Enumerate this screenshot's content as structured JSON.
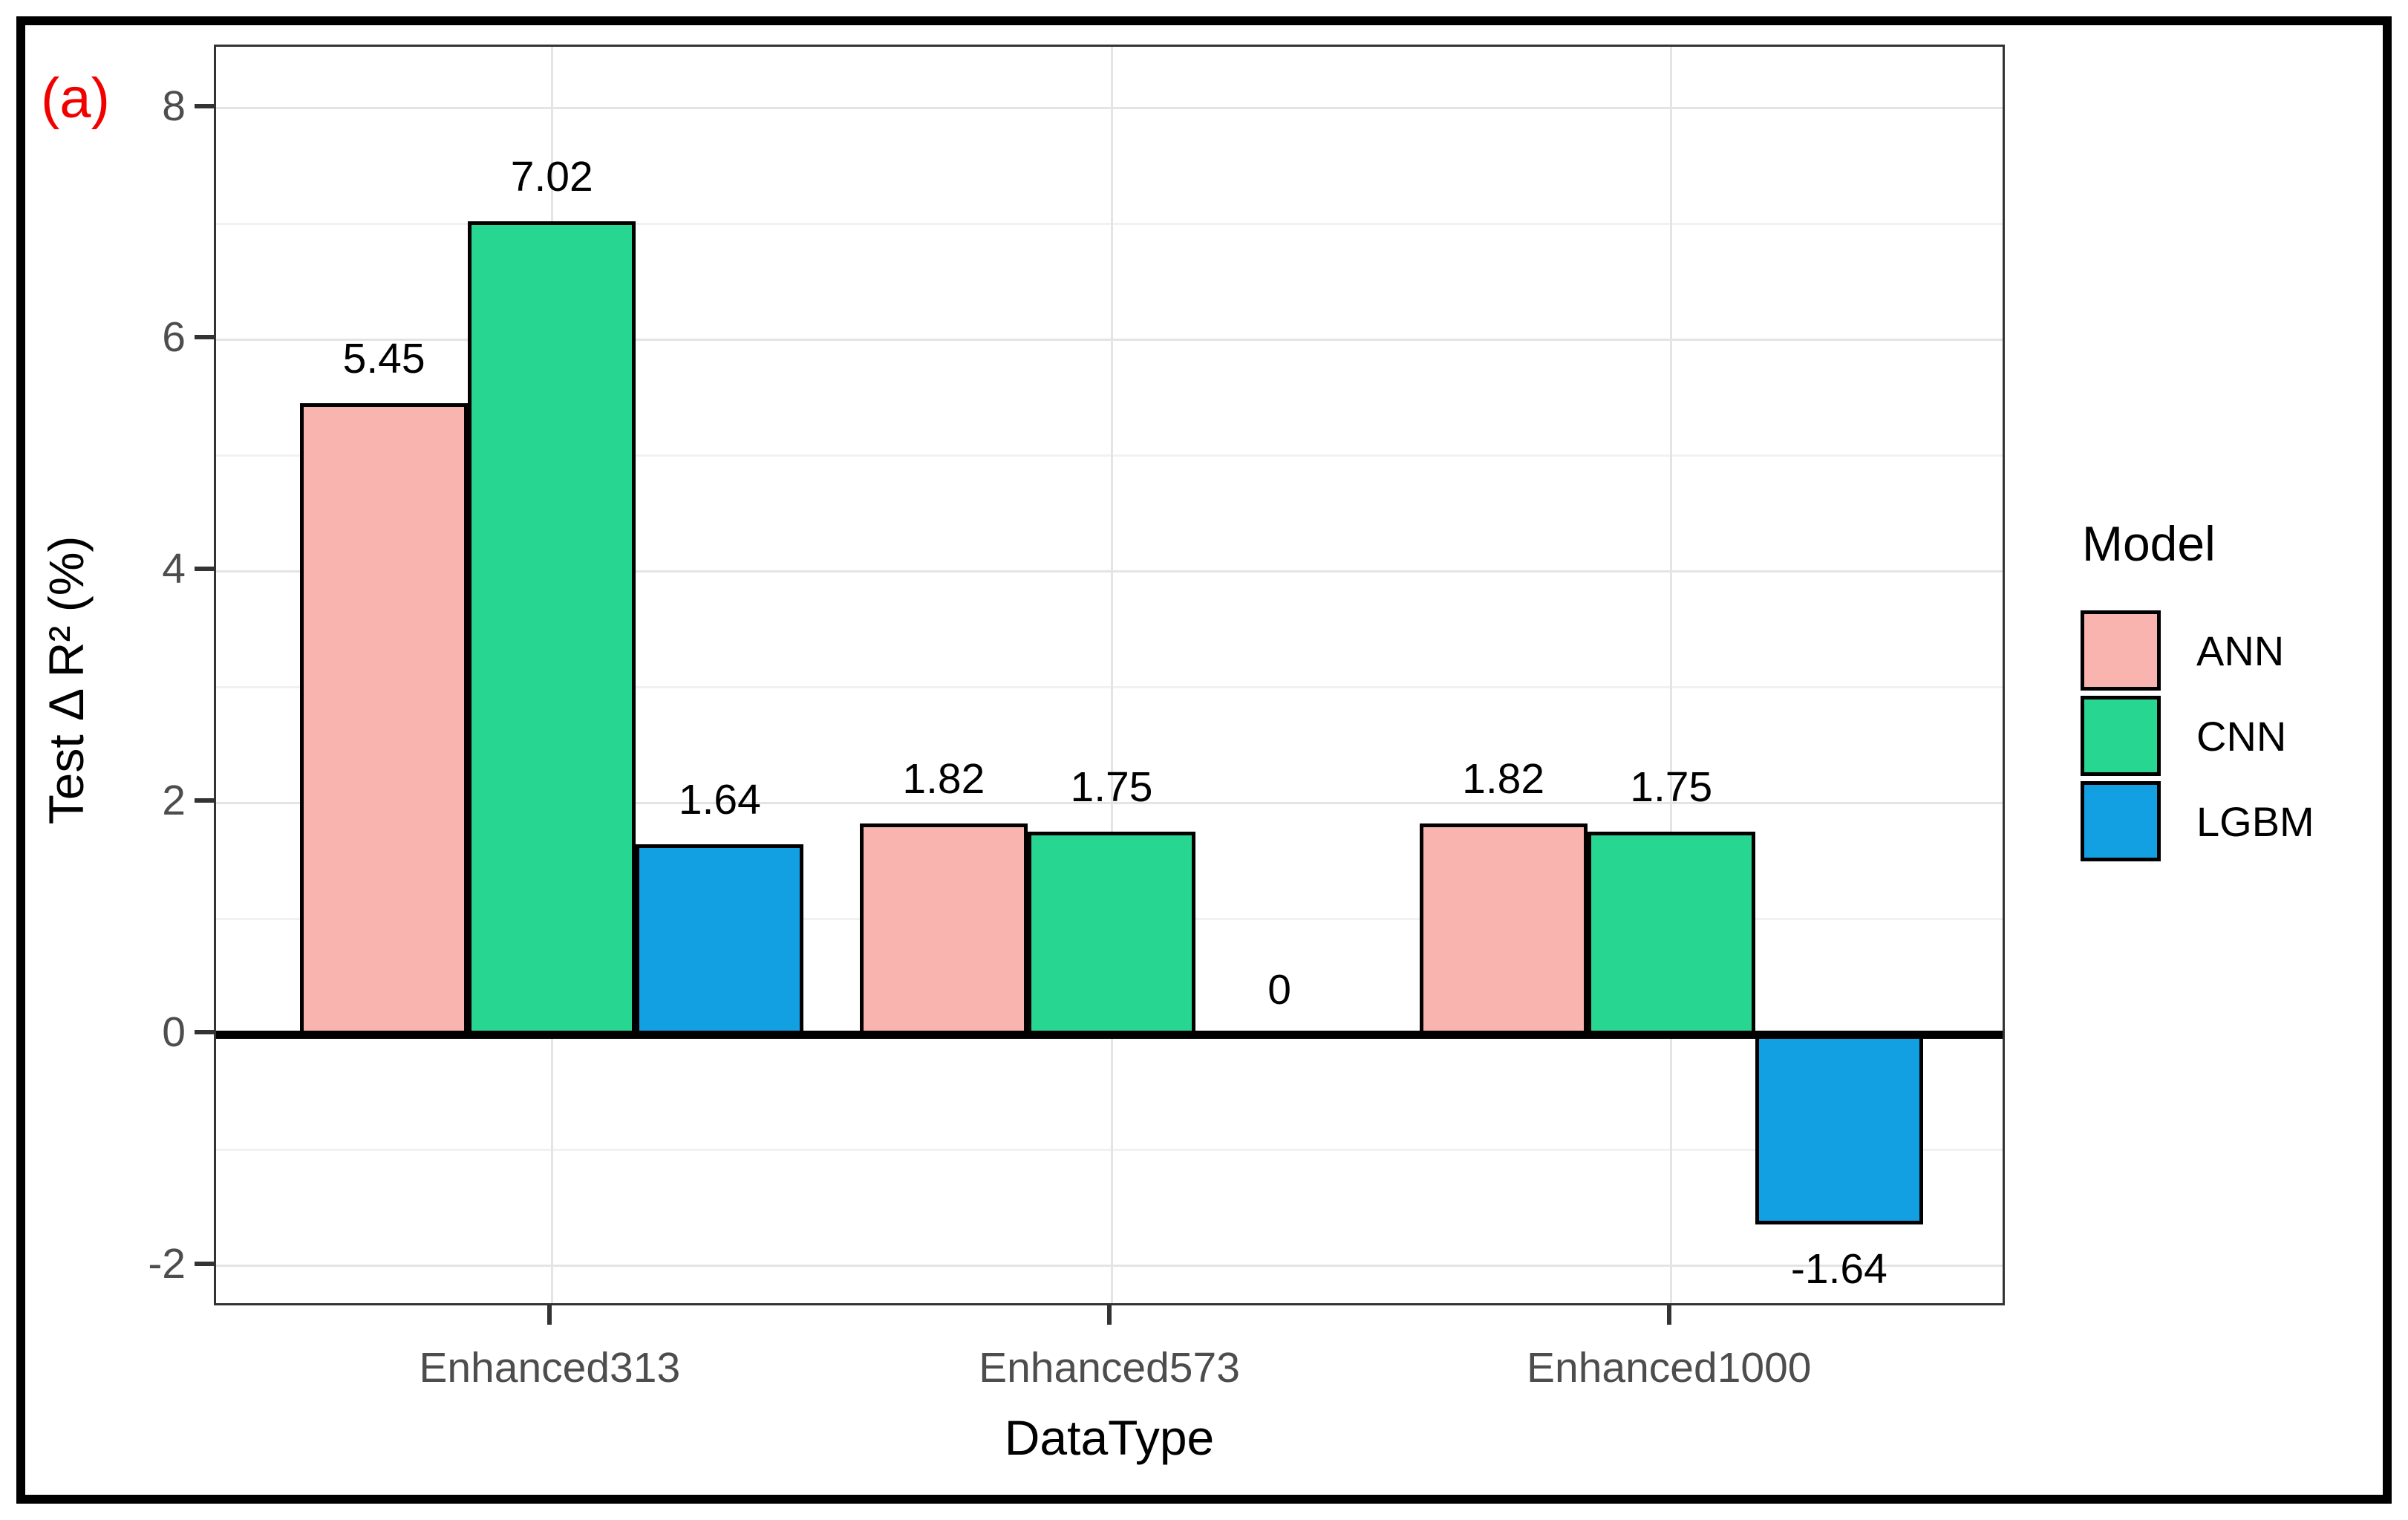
{
  "chart_data": {
    "type": "bar",
    "panel_tag": "(a)",
    "categories": [
      "Enhanced313",
      "Enhanced573",
      "Enhanced1000"
    ],
    "series": [
      {
        "name": "ANN",
        "color": "#F9B4AF",
        "values": [
          5.45,
          1.82,
          1.82
        ],
        "labels": [
          "5.45",
          "1.82",
          "1.82"
        ]
      },
      {
        "name": "CNN",
        "color": "#26D691",
        "values": [
          7.02,
          1.75,
          1.75
        ],
        "labels": [
          "7.02",
          "1.75",
          "1.75"
        ]
      },
      {
        "name": "LGBM",
        "color": "#12A0E3",
        "values": [
          1.64,
          0,
          -1.64
        ],
        "labels": [
          "1.64",
          "0",
          "-1.64"
        ]
      }
    ],
    "xlabel": "DataType",
    "ylabel": "Test Δ R² (%)",
    "y_ticks": [
      -2,
      0,
      2,
      4,
      6,
      8
    ],
    "y_minor_ticks": [
      -1,
      1,
      3,
      5,
      7
    ],
    "ylim": [
      -2.36,
      8.53
    ],
    "legend_title": "Model",
    "legend_position": "right",
    "colors": {
      "panel_tag": "#F20000",
      "tick_label": "#4D4D4D",
      "bar_outline": "#000000",
      "zero_line": "#000000"
    }
  }
}
